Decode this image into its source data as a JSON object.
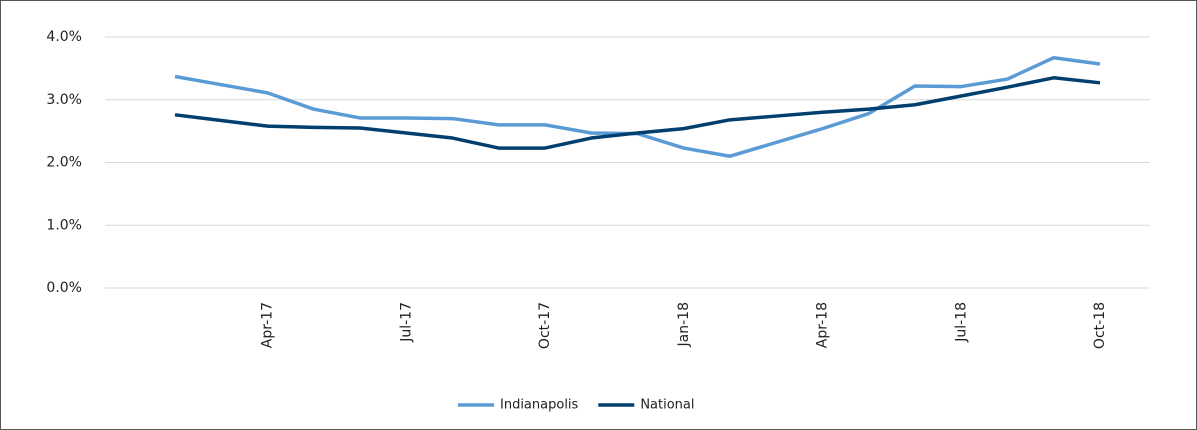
{
  "chart_data": {
    "type": "line",
    "categories": [
      null,
      null,
      "Apr-17",
      null,
      null,
      "Jul-17",
      null,
      null,
      "Oct-17",
      null,
      null,
      "Jan-18",
      null,
      null,
      "Apr-18",
      null,
      null,
      "Jul-18",
      null,
      null,
      "Oct-18"
    ],
    "series": [
      {
        "name": "Indianapolis",
        "color": "#5b9bd5",
        "values": [
          3.37,
          3.24,
          3.11,
          2.85,
          2.71,
          2.71,
          2.7,
          2.6,
          2.6,
          2.47,
          2.46,
          2.23,
          2.1,
          2.32,
          2.54,
          2.78,
          3.22,
          3.21,
          3.33,
          3.67,
          3.57
        ]
      },
      {
        "name": "National",
        "color": "#003f6e",
        "values": [
          2.76,
          2.67,
          2.58,
          2.56,
          2.55,
          2.47,
          2.39,
          2.23,
          2.23,
          2.39,
          2.47,
          2.54,
          2.68,
          2.74,
          2.8,
          2.85,
          2.92,
          3.06,
          3.2,
          3.35,
          3.27
        ]
      }
    ],
    "ylim": [
      0,
      4
    ],
    "yticks": [
      {
        "value": 0,
        "label": "0.0%"
      },
      {
        "value": 1,
        "label": "1.0%"
      },
      {
        "value": 2,
        "label": "2.0%"
      },
      {
        "value": 3,
        "label": "3.0%"
      },
      {
        "value": 4,
        "label": "4.0%"
      }
    ],
    "grid": true
  }
}
